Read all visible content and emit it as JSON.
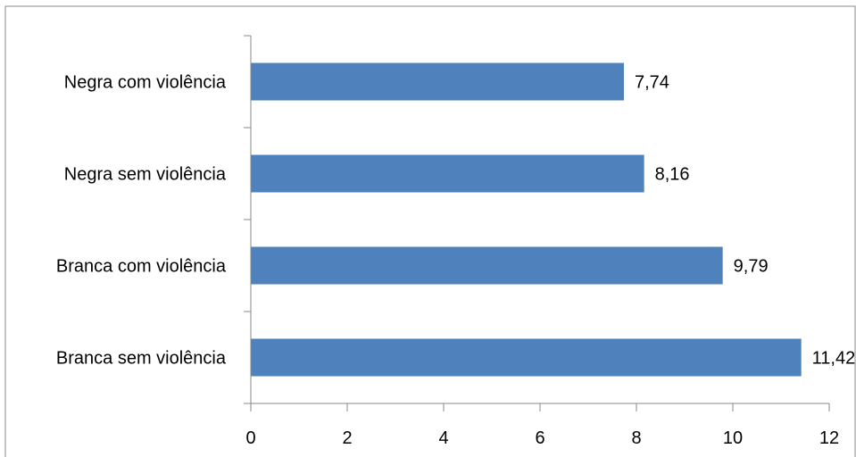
{
  "chart_data": {
    "type": "bar",
    "orientation": "horizontal",
    "categories": [
      "Branca sem violência",
      "Branca com violência",
      "Negra sem violência",
      "Negra com violência"
    ],
    "values": [
      11.42,
      9.79,
      8.16,
      7.74
    ],
    "value_labels": [
      "11,42",
      "9,79",
      "8,16",
      "7,74"
    ],
    "xlim": [
      0,
      12
    ],
    "x_ticks": [
      0,
      2,
      4,
      6,
      8,
      10,
      12
    ],
    "x_tick_labels": [
      "0",
      "2",
      "4",
      "6",
      "8",
      "10",
      "12"
    ],
    "title": "",
    "xlabel": "",
    "ylabel": "",
    "grid": false,
    "legend": "none",
    "bar_color": "#4F81BD"
  }
}
